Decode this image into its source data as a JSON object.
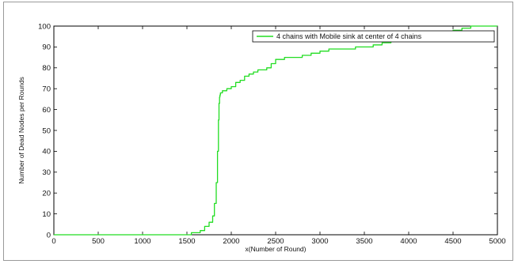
{
  "chart_data": {
    "type": "line",
    "title": "",
    "xlabel": "x(Number of Round)",
    "ylabel": "Number of Dead Nodes per Rounds",
    "xlim": [
      0,
      5000
    ],
    "ylim": [
      0,
      100
    ],
    "xticks": [
      0,
      500,
      1000,
      1500,
      2000,
      2500,
      3000,
      3500,
      4000,
      4500,
      5000
    ],
    "yticks": [
      0,
      10,
      20,
      30,
      40,
      50,
      60,
      70,
      80,
      90,
      100
    ],
    "grid": false,
    "legend_position": "top-right",
    "series": [
      {
        "name": "4 chains with Mobile sink at center of 4 chains",
        "color": "#22dd22",
        "x": [
          0,
          1450,
          1550,
          1650,
          1700,
          1750,
          1790,
          1810,
          1830,
          1845,
          1855,
          1862,
          1868,
          1872,
          1878,
          1885,
          1900,
          1950,
          2000,
          2050,
          2100,
          2150,
          2200,
          2250,
          2300,
          2400,
          2450,
          2500,
          2600,
          2700,
          2800,
          2900,
          3000,
          3100,
          3200,
          3400,
          3500,
          3600,
          3700,
          3800,
          3900,
          4000,
          4100,
          4300,
          4500,
          4600,
          4700,
          5000
        ],
        "y": [
          0,
          0,
          1,
          2,
          4,
          6,
          9,
          15,
          25,
          40,
          55,
          63,
          66,
          67,
          68,
          68,
          69,
          70,
          71,
          73,
          74,
          76,
          77,
          78,
          79,
          80,
          82,
          84,
          85,
          85,
          86,
          87,
          88,
          89,
          89,
          90,
          90,
          91,
          92,
          93,
          94,
          94,
          95,
          96,
          98,
          99,
          100,
          100
        ]
      }
    ]
  }
}
